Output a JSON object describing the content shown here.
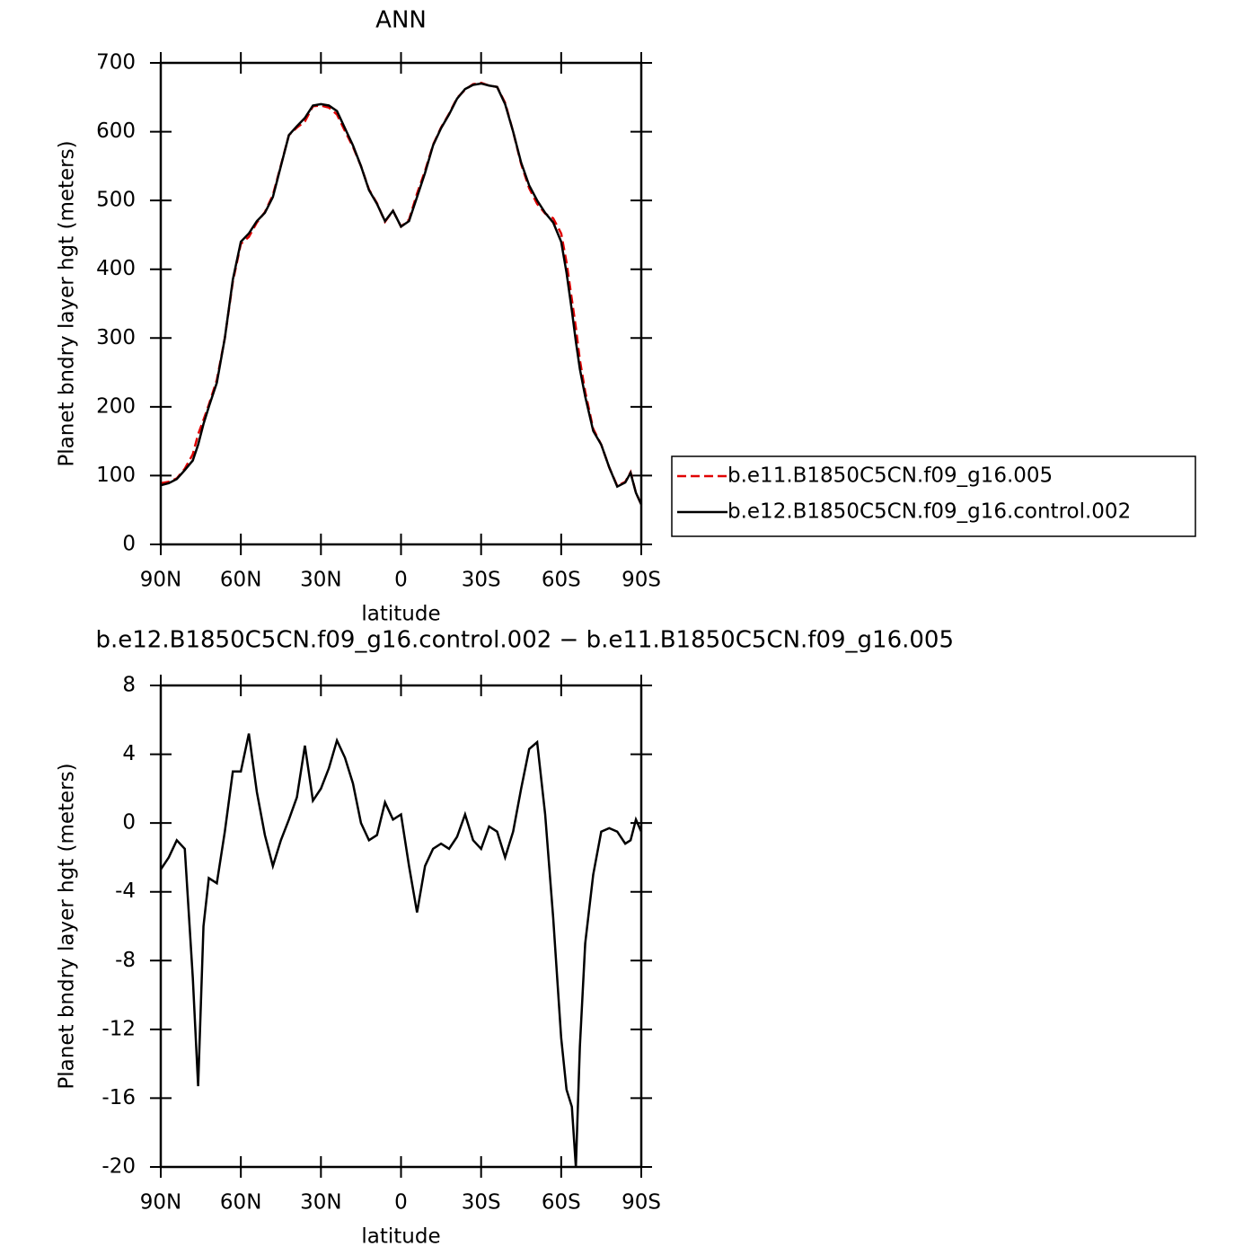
{
  "chart_data": [
    {
      "type": "line",
      "title": "ANN",
      "xlabel": "latitude",
      "ylabel": "Planet bndry layer hgt (meters)",
      "x": [
        90,
        87,
        84,
        81,
        78,
        76,
        74,
        72,
        69,
        66,
        63,
        60,
        57,
        54,
        51,
        48,
        45,
        42,
        39,
        36,
        33,
        30,
        27,
        24,
        21,
        18,
        15,
        12,
        9,
        6,
        3,
        0,
        -3,
        -6,
        -9,
        -12,
        -15,
        -18,
        -21,
        -24,
        -27,
        -30,
        -33,
        -36,
        -39,
        -42,
        -45,
        -48,
        -51,
        -54,
        -57,
        -60,
        -62,
        -64,
        -65.5,
        -67,
        -69,
        -72,
        -75,
        -78,
        -81,
        -84,
        -86,
        -88,
        -90
      ],
      "xlim": [
        90,
        -90
      ],
      "xticks": [
        {
          "value": 90,
          "label": "90N"
        },
        {
          "value": 60,
          "label": "60N"
        },
        {
          "value": 30,
          "label": "30N"
        },
        0,
        {
          "value": -30,
          "label": "30S"
        },
        {
          "value": -60,
          "label": "60S"
        },
        {
          "value": -90,
          "label": "90S"
        }
      ],
      "ylim": [
        0,
        700
      ],
      "yticks": [
        0,
        100,
        200,
        300,
        400,
        500,
        600,
        700
      ],
      "legend": "right",
      "series": [
        {
          "name": "b.e11.B1850C5CN.f09_g16.005",
          "color": "#e00000",
          "dash": "dashed",
          "values": [
            89,
            91,
            96,
            110,
            131,
            160,
            181,
            203,
            239,
            300,
            382,
            437,
            447,
            468,
            483,
            508,
            551,
            595,
            606,
            615,
            637,
            638,
            635,
            625,
            601,
            578,
            550,
            516,
            496,
            469,
            485,
            462,
            472,
            510,
            543,
            581,
            606,
            626,
            649,
            661,
            669,
            671,
            667,
            665,
            642,
            600,
            553,
            518,
            495,
            481,
            474,
            452,
            410,
            356,
            315,
            268,
            222,
            168,
            145,
            112,
            85,
            91,
            105,
            75,
            58
          ]
        },
        {
          "name": "b.e12.B1850C5CN.f09_g16.control.002",
          "color": "#000000",
          "dash": "solid",
          "values": [
            86,
            89,
            95,
            108,
            122,
            145,
            175,
            200,
            235,
            300,
            385,
            440,
            452,
            470,
            482,
            505,
            550,
            595,
            608,
            620,
            638,
            640,
            638,
            630,
            605,
            580,
            550,
            515,
            495,
            470,
            485,
            462,
            470,
            505,
            540,
            580,
            605,
            625,
            648,
            662,
            668,
            670,
            667,
            665,
            640,
            600,
            555,
            522,
            500,
            482,
            468,
            440,
            395,
            340,
            295,
            255,
            215,
            165,
            145,
            112,
            84,
            90,
            104,
            75,
            58
          ]
        }
      ]
    },
    {
      "type": "line",
      "title": "b.e12.B1850C5CN.f09_g16.control.002 − b.e11.B1850C5CN.f09_g16.005",
      "xlabel": "latitude",
      "ylabel": "Planet bndry layer hgt (meters)",
      "x": [
        90,
        87,
        84,
        81,
        78,
        76,
        74,
        72,
        69,
        66,
        63,
        60,
        57,
        54,
        51,
        48,
        45,
        42,
        39,
        36,
        33,
        30,
        27,
        24,
        21,
        18,
        15,
        12,
        9,
        6,
        3,
        0,
        -3,
        -6,
        -9,
        -12,
        -15,
        -18,
        -21,
        -24,
        -27,
        -30,
        -33,
        -36,
        -39,
        -42,
        -45,
        -48,
        -51,
        -54,
        -57,
        -60,
        -62,
        -64,
        -65.5,
        -67,
        -69,
        -72,
        -75,
        -78,
        -81,
        -84,
        -86,
        -88,
        -90
      ],
      "xlim": [
        90,
        -90
      ],
      "xticks": [
        {
          "value": 90,
          "label": "90N"
        },
        {
          "value": 60,
          "label": "60N"
        },
        {
          "value": 30,
          "label": "30N"
        },
        0,
        {
          "value": -30,
          "label": "30S"
        },
        {
          "value": -60,
          "label": "60S"
        },
        {
          "value": -90,
          "label": "90S"
        }
      ],
      "ylim": [
        -20,
        8
      ],
      "yticks": [
        -20,
        -16,
        -12,
        -8,
        -4,
        0,
        4,
        8
      ],
      "series": [
        {
          "color": "#000000",
          "dash": "solid",
          "values": [
            -2.7,
            -2.0,
            -1.0,
            -1.5,
            -9,
            -15.3,
            -6,
            -3.2,
            -3.5,
            -0.5,
            3.0,
            3.0,
            5.2,
            1.8,
            -0.7,
            -2.5,
            -1.0,
            0.2,
            1.5,
            4.5,
            1.3,
            2.0,
            3.2,
            4.8,
            3.8,
            2.3,
            0,
            -1.0,
            -0.7,
            1.2,
            0.2,
            0.5,
            -2.5,
            -5.2,
            -2.5,
            -1.5,
            -1.2,
            -1.5,
            -0.8,
            0.5,
            -1.0,
            -1.5,
            -0.2,
            -0.5,
            -2.0,
            -0.5,
            2.0,
            4.3,
            4.7,
            0.5,
            -5.5,
            -12.5,
            -15.5,
            -16.5,
            -20,
            -13,
            -7,
            -3,
            -0.5,
            -0.3,
            -0.5,
            -1.2,
            -1.0,
            0.2,
            -0.5
          ]
        }
      ]
    }
  ]
}
